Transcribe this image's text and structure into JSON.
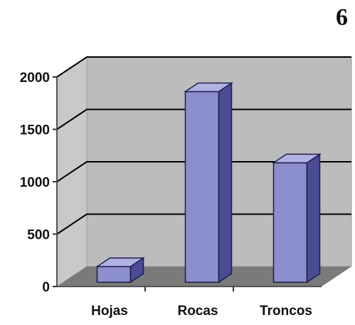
{
  "page_number": "6",
  "chart_data": {
    "type": "bar",
    "categories": [
      "Hojas",
      "Rocas",
      "Troncos"
    ],
    "values": [
      150,
      1820,
      1140
    ],
    "y_ticks": [
      "0",
      "500",
      "1000",
      "1500",
      "2000"
    ],
    "ylim": [
      0,
      2000
    ],
    "grid": true,
    "three_d": true,
    "colors": {
      "bar_front": "#8c8fce",
      "bar_top": "#b0b2e4",
      "bar_side": "#4a4c96",
      "back_wall": "#bcbcbc",
      "side_wall": "#c9c9c9",
      "floor": "#7a7a7a"
    }
  }
}
